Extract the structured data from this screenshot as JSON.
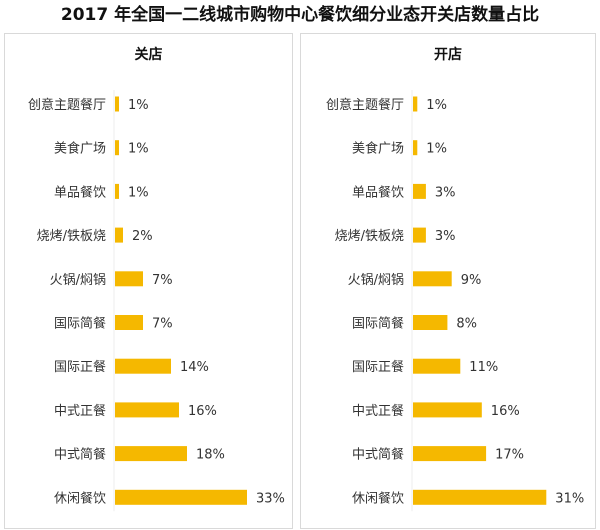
{
  "title": "2017 年全国一二线城市购物中心餐饮细分业态开关店数量占比",
  "chart_data": [
    {
      "type": "bar",
      "orientation": "horizontal",
      "title": "关店",
      "categories": [
        "创意主题餐厅",
        "美食广场",
        "单品餐饮",
        "烧烤/铁板烧",
        "火锅/焖锅",
        "国际简餐",
        "国际正餐",
        "中式正餐",
        "中式简餐",
        "休闲餐饮"
      ],
      "values": [
        1,
        1,
        1,
        2,
        7,
        7,
        14,
        16,
        18,
        33
      ],
      "value_labels": [
        "1%",
        "1%",
        "1%",
        "2%",
        "7%",
        "7%",
        "14%",
        "16%",
        "18%",
        "33%"
      ],
      "unit": "%",
      "color": "#F5B800"
    },
    {
      "type": "bar",
      "orientation": "horizontal",
      "title": "开店",
      "categories": [
        "创意主题餐厅",
        "美食广场",
        "单品餐饮",
        "烧烤/铁板烧",
        "火锅/焖锅",
        "国际简餐",
        "国际正餐",
        "中式正餐",
        "中式简餐",
        "休闲餐饮"
      ],
      "values": [
        1,
        1,
        3,
        3,
        9,
        8,
        11,
        16,
        17,
        31
      ],
      "value_labels": [
        "1%",
        "1%",
        "3%",
        "3%",
        "9%",
        "8%",
        "11%",
        "16%",
        "17%",
        "31%"
      ],
      "unit": "%",
      "color": "#F5B800"
    }
  ]
}
